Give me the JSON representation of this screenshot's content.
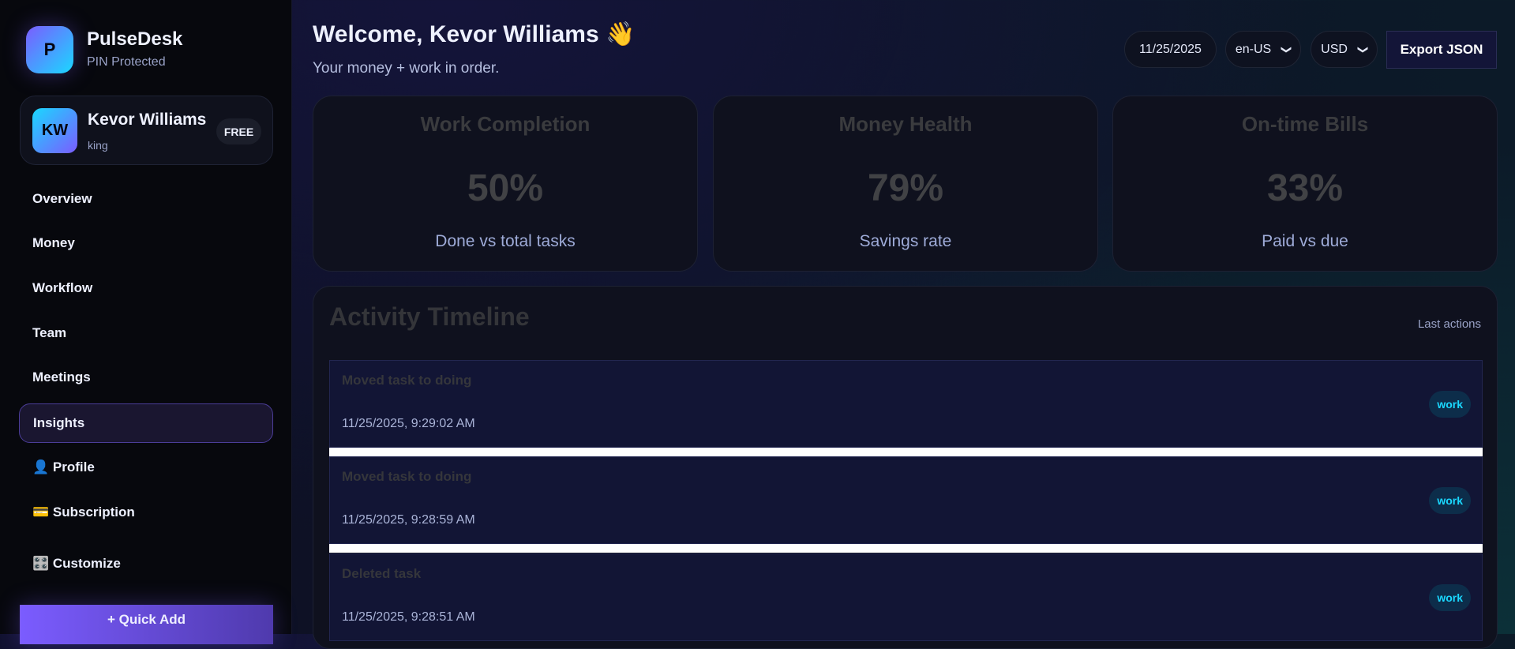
{
  "brand": {
    "logo_letter": "P",
    "name": "PulseDesk",
    "subtitle": "PIN Protected"
  },
  "user": {
    "initials": "KW",
    "name": "Kevor Williams",
    "role": "king",
    "plan": "FREE"
  },
  "nav": [
    {
      "label": "Overview"
    },
    {
      "label": "Money"
    },
    {
      "label": "Workflow"
    },
    {
      "label": "Team"
    },
    {
      "label": "Meetings"
    },
    {
      "label": "Insights",
      "active": true
    },
    {
      "label": "👤 Profile"
    },
    {
      "label": "💳 Subscription"
    },
    {
      "label": "🎛️ Customize"
    }
  ],
  "quick_add": "+ Quick Add",
  "header": {
    "title": "Welcome, Kevor Williams 👋",
    "subtitle": "Your money + work in order.",
    "date": "11/25/2025",
    "locale": "en-US",
    "currency": "USD",
    "export": "Export JSON"
  },
  "cards": [
    {
      "title": "Work Completion",
      "value": "50%",
      "caption": "Done vs total tasks"
    },
    {
      "title": "Money Health",
      "value": "79%",
      "caption": "Savings rate"
    },
    {
      "title": "On-time Bills",
      "value": "33%",
      "caption": "Paid vs due"
    }
  ],
  "timeline": {
    "title": "Activity Timeline",
    "subtitle": "Last actions",
    "items": [
      {
        "title": "Moved task to doing",
        "time": "11/25/2025, 9:29:02 AM",
        "tag": "work"
      },
      {
        "title": "Moved task to doing",
        "time": "11/25/2025, 9:28:59 AM",
        "tag": "work"
      },
      {
        "title": "Deleted task",
        "time": "11/25/2025, 9:28:51 AM",
        "tag": "work"
      }
    ]
  },
  "colors": {
    "accent": "#7b5cff",
    "cyan": "#1ad8ff"
  }
}
